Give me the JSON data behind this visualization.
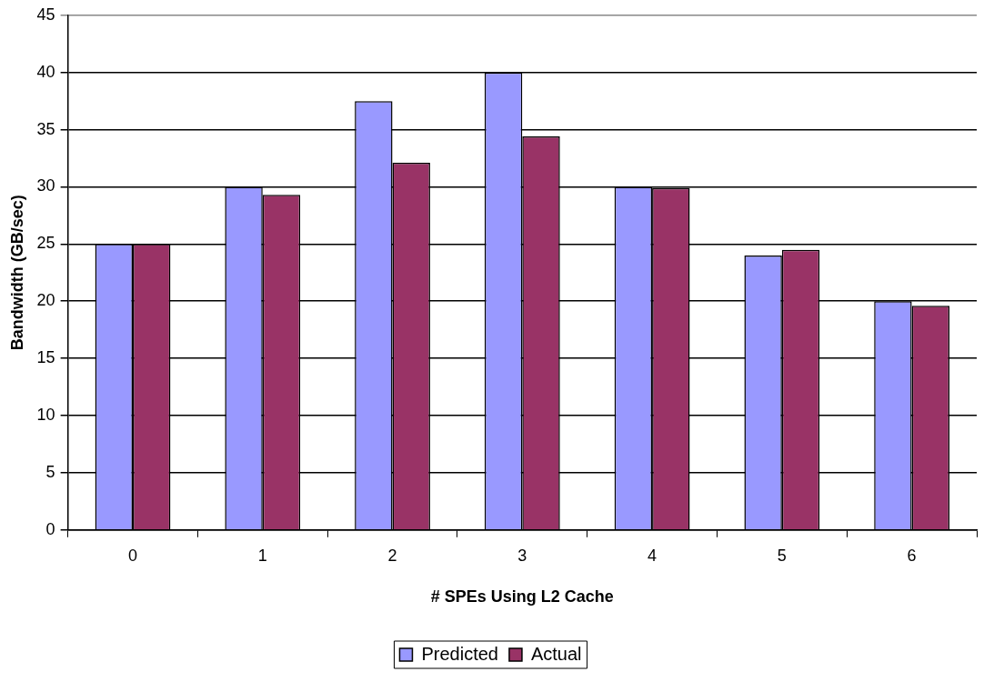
{
  "chart_data": {
    "type": "bar",
    "xlabel": "# SPEs Using L2 Cache",
    "ylabel": "Bandwidth (GB/sec)",
    "categories": [
      "0",
      "1",
      "2",
      "3",
      "4",
      "5",
      "6"
    ],
    "series": [
      {
        "name": "Predicted",
        "color": "#9999ff",
        "values": [
          25,
          30,
          37.5,
          40,
          30,
          24,
          20
        ]
      },
      {
        "name": "Actual",
        "color": "#993366",
        "values": [
          25,
          29.3,
          32.1,
          34.4,
          29.9,
          24.5,
          19.6
        ]
      }
    ],
    "ylim": [
      0,
      45
    ],
    "yticks": [
      0,
      5,
      10,
      15,
      20,
      25,
      30,
      35,
      40,
      45
    ],
    "grid": "y",
    "legend": "bottom"
  }
}
